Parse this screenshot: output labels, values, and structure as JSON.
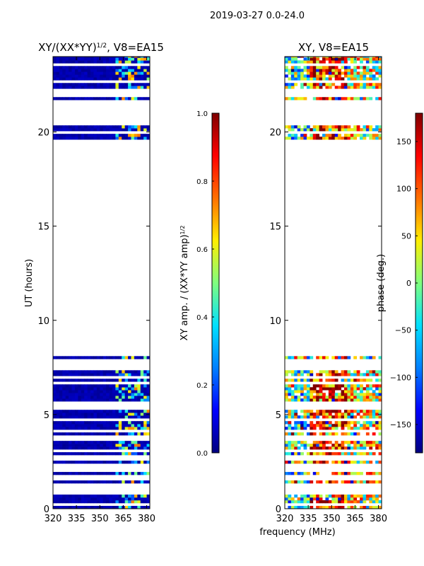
{
  "figure": {
    "suptitle": "2019-03-27 0.0-24.0",
    "xlabel": "frequency (MHz)"
  },
  "colors": {
    "jet": [
      "#00007f",
      "#0000ff",
      "#0080ff",
      "#00e0ff",
      "#7fff7f",
      "#ffee00",
      "#ff7000",
      "#ff0000",
      "#7f0000"
    ]
  },
  "chart_data": [
    {
      "type": "heatmap",
      "title": "XY/(XX*YY)^1/2, V8=EA15",
      "title_main": "XY/(XX*YY)",
      "title_exp": "1/2",
      "title_tail": ", V8=EA15",
      "ylabel": "UT (hours)",
      "xlim": [
        320,
        382
      ],
      "ylim": [
        0,
        24
      ],
      "xticks": [
        320,
        335,
        350,
        365,
        380
      ],
      "yticks": [
        0,
        5,
        10,
        15,
        20
      ],
      "data_blocks_ut": [
        [
          0,
          8.0
        ],
        [
          19.6,
          20.3
        ],
        [
          21.7,
          24.0
        ]
      ],
      "bright_region_mhz": [
        360,
        380
      ],
      "colorbar": {
        "label": "XY amp. / (XX*YY amp)^1/2",
        "label_main": "XY amp. / (XX*YY amp)",
        "label_exp": "1/2",
        "range": [
          0.0,
          1.0
        ],
        "ticks": [
          "0.0",
          "0.2",
          "0.4",
          "0.6",
          "0.8",
          "1.0"
        ]
      }
    },
    {
      "type": "heatmap",
      "title": "XY, V8=EA15",
      "xlim": [
        320,
        382
      ],
      "ylim": [
        0,
        24
      ],
      "xticks": [
        320,
        335,
        350,
        365,
        380
      ],
      "yticks": [
        0,
        5,
        10,
        15,
        20
      ],
      "data_blocks_ut": [
        [
          0,
          8.0
        ],
        [
          19.6,
          20.3
        ],
        [
          21.7,
          24.0
        ]
      ],
      "colorbar": {
        "label": "phase (deg.)",
        "range": [
          -180,
          180
        ],
        "ticks": [
          "150",
          "100",
          "50",
          "0",
          "−50",
          "−100",
          "−150"
        ]
      }
    }
  ]
}
